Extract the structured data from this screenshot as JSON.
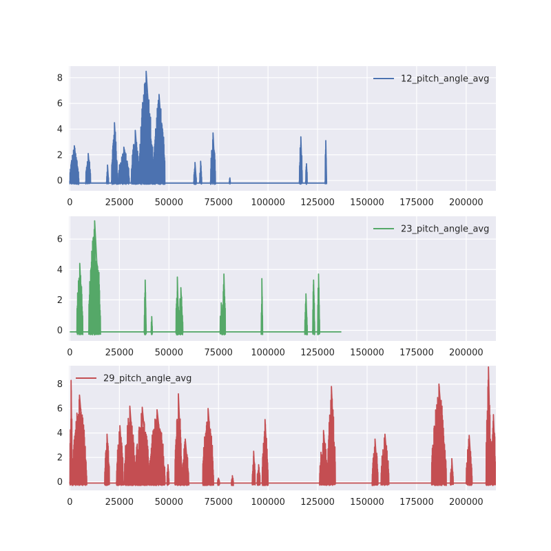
{
  "chart_data": [
    {
      "type": "line",
      "xlim": [
        -500,
        215000
      ],
      "ylim": [
        -0.8,
        8.9
      ],
      "xticks": [
        0,
        25000,
        50000,
        75000,
        100000,
        125000,
        150000,
        175000,
        200000
      ],
      "yticks": [
        0,
        2,
        4,
        6,
        8
      ],
      "grid": true,
      "legend_position": "upper right",
      "series": [
        {
          "name": "12_pitch_angle_avg",
          "color": "#4c72b0",
          "baseline": -0.2,
          "x_end": 129500,
          "bursts": [
            {
              "x": [
                0,
                4500
              ],
              "max": 2.7
            },
            {
              "x": [
                8000,
                10500
              ],
              "max": 2.1
            },
            {
              "x": [
                18500,
                19500
              ],
              "max": 1.2
            },
            {
              "x": [
                21000,
                24000
              ],
              "max": 4.5
            },
            {
              "x": [
                24500,
                30000
              ],
              "max": 2.6
            },
            {
              "x": [
                31000,
                35000
              ],
              "max": 3.9
            },
            {
              "x": [
                35000,
                42000
              ],
              "max": 8.5
            },
            {
              "x": [
                42000,
                48000
              ],
              "max": 6.7
            },
            {
              "x": [
                62500,
                63800
              ],
              "max": 1.4
            },
            {
              "x": [
                65500,
                66500
              ],
              "max": 1.5
            },
            {
              "x": [
                71000,
                73500
              ],
              "max": 3.7
            },
            {
              "x": [
                80500,
                81000
              ],
              "max": 0.2
            },
            {
              "x": [
                115800,
                117300
              ],
              "max": 3.4
            },
            {
              "x": [
                119000,
                119800
              ],
              "max": 1.3
            },
            {
              "x": [
                128800,
                129500
              ],
              "max": 3.1
            }
          ]
        },
        {
          "name": "23_pitch_angle_avg",
          "color": "#55a868",
          "baseline": -0.1,
          "x_end": 137000,
          "bursts": [
            {
              "x": [
                3500,
                6500
              ],
              "max": 4.4
            },
            {
              "x": [
                9500,
                15500
              ],
              "max": 7.2
            },
            {
              "x": [
                37500,
                38500
              ],
              "max": 3.3
            },
            {
              "x": [
                41000,
                41600
              ],
              "max": 0.9
            },
            {
              "x": [
                53500,
                55000
              ],
              "max": 3.5
            },
            {
              "x": [
                55000,
                57000
              ],
              "max": 2.8
            },
            {
              "x": [
                75800,
                77000
              ],
              "max": 1.8
            },
            {
              "x": [
                77000,
                78500
              ],
              "max": 3.7
            },
            {
              "x": [
                96500,
                97300
              ],
              "max": 3.4
            },
            {
              "x": [
                118500,
                119800
              ],
              "max": 2.4
            },
            {
              "x": [
                122500,
                123500
              ],
              "max": 3.3
            },
            {
              "x": [
                125000,
                126000
              ],
              "max": 3.7
            }
          ]
        },
        {
          "name": "29_pitch_angle_avg",
          "color": "#c44e52",
          "baseline": -0.1,
          "x_end": 215000,
          "bursts": [
            {
              "x": [
                0,
                1200
              ],
              "max": 8.3
            },
            {
              "x": [
                1200,
                8500
              ],
              "max": 7.1
            },
            {
              "x": [
                17500,
                20000
              ],
              "max": 3.9
            },
            {
              "x": [
                23500,
                27000
              ],
              "max": 4.6
            },
            {
              "x": [
                27500,
                33000
              ],
              "max": 6.2
            },
            {
              "x": [
                33000,
                40000
              ],
              "max": 6.1
            },
            {
              "x": [
                40000,
                48000
              ],
              "max": 5.9
            },
            {
              "x": [
                49000,
                50000
              ],
              "max": 1.4
            },
            {
              "x": [
                53000,
                56500
              ],
              "max": 7.2
            },
            {
              "x": [
                56500,
                60000
              ],
              "max": 3.5
            },
            {
              "x": [
                67000,
                72500
              ],
              "max": 6.0
            },
            {
              "x": [
                74500,
                75500
              ],
              "max": 0.3
            },
            {
              "x": [
                81500,
                82500
              ],
              "max": 0.5
            },
            {
              "x": [
                92000,
                93500
              ],
              "max": 2.5
            },
            {
              "x": [
                94500,
                96000
              ],
              "max": 1.4
            },
            {
              "x": [
                97000,
                100000
              ],
              "max": 5.1
            },
            {
              "x": [
                126000,
                130000
              ],
              "max": 4.2
            },
            {
              "x": [
                130000,
                134000
              ],
              "max": 7.8
            },
            {
              "x": [
                152500,
                155500
              ],
              "max": 3.5
            },
            {
              "x": [
                157000,
                161000
              ],
              "max": 3.9
            },
            {
              "x": [
                182500,
                190000
              ],
              "max": 8.0
            },
            {
              "x": [
                192000,
                193500
              ],
              "max": 1.9
            },
            {
              "x": [
                200000,
                203000
              ],
              "max": 3.8
            },
            {
              "x": [
                210000,
                212500
              ],
              "max": 9.4
            },
            {
              "x": [
                212500,
                215000
              ],
              "max": 5.5
            }
          ]
        }
      ]
    }
  ]
}
